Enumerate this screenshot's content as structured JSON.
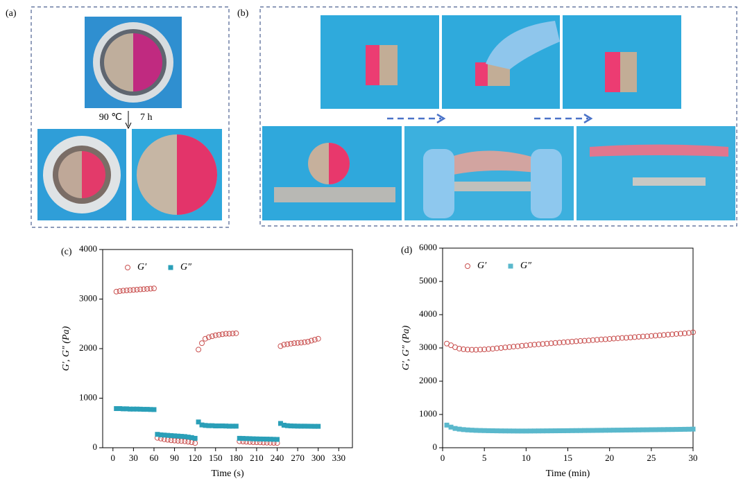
{
  "figure": {
    "panel_labels": [
      "(a)",
      "(b)"
    ],
    "annotation_temp": "90 ℃",
    "annotation_time": "7 h"
  },
  "chart_data": [
    {
      "type": "scatter",
      "label": "(c)",
      "x_label": "Time (s)",
      "y_label": "G′, G″ (Pa)",
      "x": [
        5,
        10,
        15,
        20,
        25,
        30,
        35,
        40,
        45,
        50,
        55,
        60,
        65,
        70,
        75,
        80,
        85,
        90,
        95,
        100,
        105,
        110,
        115,
        120,
        125,
        130,
        135,
        140,
        145,
        150,
        155,
        160,
        165,
        170,
        175,
        180,
        185,
        190,
        195,
        200,
        205,
        210,
        215,
        220,
        225,
        230,
        235,
        240,
        245,
        250,
        255,
        260,
        265,
        270,
        275,
        280,
        285,
        290,
        295,
        300
      ],
      "series": [
        {
          "name": "G′",
          "color": "#c9504f",
          "marker": "circle-open",
          "values": [
            3150,
            3160,
            3170,
            3175,
            3180,
            3185,
            3190,
            3195,
            3200,
            3205,
            3210,
            3215,
            200,
            185,
            170,
            160,
            150,
            145,
            140,
            135,
            130,
            120,
            110,
            95,
            1980,
            2110,
            2200,
            2230,
            2250,
            2270,
            2280,
            2290,
            2300,
            2300,
            2305,
            2310,
            130,
            125,
            120,
            115,
            112,
            110,
            108,
            105,
            102,
            100,
            98,
            95,
            2050,
            2080,
            2090,
            2100,
            2110,
            2115,
            2120,
            2130,
            2140,
            2160,
            2180,
            2200
          ]
        },
        {
          "name": "G″",
          "color": "#2a9fb8",
          "marker": "square",
          "values": [
            790,
            790,
            785,
            785,
            780,
            780,
            780,
            778,
            775,
            775,
            772,
            770,
            270,
            260,
            255,
            250,
            245,
            240,
            235,
            230,
            225,
            215,
            205,
            190,
            520,
            460,
            450,
            445,
            445,
            440,
            440,
            440,
            438,
            435,
            435,
            435,
            190,
            188,
            185,
            183,
            180,
            178,
            176,
            175,
            174,
            172,
            170,
            168,
            490,
            455,
            445,
            440,
            438,
            436,
            435,
            435,
            434,
            433,
            432,
            432
          ]
        }
      ],
      "xlim": [
        -15,
        350
      ],
      "xticks": [
        0,
        30,
        60,
        90,
        120,
        150,
        180,
        210,
        240,
        270,
        300,
        330
      ],
      "ylim": [
        0,
        4000
      ],
      "yticks": [
        0,
        1000,
        2000,
        3000,
        4000
      ],
      "legend": "upper left"
    },
    {
      "type": "scatter",
      "label": "(d)",
      "x_label": "Time (min)",
      "y_label": "G′, G″ (Pa)",
      "x": [
        0.5,
        1,
        1.5,
        2,
        2.5,
        3,
        3.5,
        4,
        4.5,
        5,
        5.5,
        6,
        6.5,
        7,
        7.5,
        8,
        8.5,
        9,
        9.5,
        10,
        10.5,
        11,
        11.5,
        12,
        12.5,
        13,
        13.5,
        14,
        14.5,
        15,
        15.5,
        16,
        16.5,
        17,
        17.5,
        18,
        18.5,
        19,
        19.5,
        20,
        20.5,
        21,
        21.5,
        22,
        22.5,
        23,
        23.5,
        24,
        24.5,
        25,
        25.5,
        26,
        26.5,
        27,
        27.5,
        28,
        28.5,
        29,
        29.5,
        30
      ],
      "series": [
        {
          "name": "G′",
          "color": "#c9504f",
          "marker": "circle-open",
          "values": [
            3130,
            3080,
            3020,
            2980,
            2960,
            2950,
            2945,
            2945,
            2950,
            2955,
            2965,
            2975,
            2990,
            3000,
            3015,
            3025,
            3040,
            3050,
            3065,
            3075,
            3090,
            3100,
            3110,
            3120,
            3130,
            3140,
            3150,
            3160,
            3170,
            3180,
            3190,
            3200,
            3210,
            3215,
            3225,
            3235,
            3245,
            3255,
            3260,
            3270,
            3280,
            3290,
            3300,
            3305,
            3315,
            3325,
            3335,
            3345,
            3350,
            3360,
            3370,
            3380,
            3390,
            3400,
            3410,
            3420,
            3430,
            3440,
            3450,
            3470
          ]
        },
        {
          "name": "G″",
          "color": "#5ab8cc",
          "marker": "square",
          "values": [
            680,
            620,
            580,
            560,
            545,
            535,
            528,
            522,
            518,
            515,
            512,
            510,
            508,
            506,
            505,
            504,
            503,
            502,
            502,
            502,
            503,
            504,
            505,
            506,
            507,
            508,
            509,
            510,
            511,
            512,
            514,
            515,
            516,
            518,
            519,
            520,
            522,
            523,
            525,
            526,
            528,
            529,
            530,
            532,
            533,
            535,
            536,
            538,
            539,
            541,
            542,
            544,
            545,
            547,
            548,
            550,
            552,
            554,
            556,
            560
          ]
        }
      ],
      "xlim": [
        0,
        30
      ],
      "xticks": [
        0,
        5,
        10,
        15,
        20,
        25,
        30
      ],
      "ylim": [
        0,
        6000
      ],
      "yticks": [
        0,
        1000,
        2000,
        3000,
        4000,
        5000,
        6000
      ],
      "legend": "upper left"
    }
  ]
}
